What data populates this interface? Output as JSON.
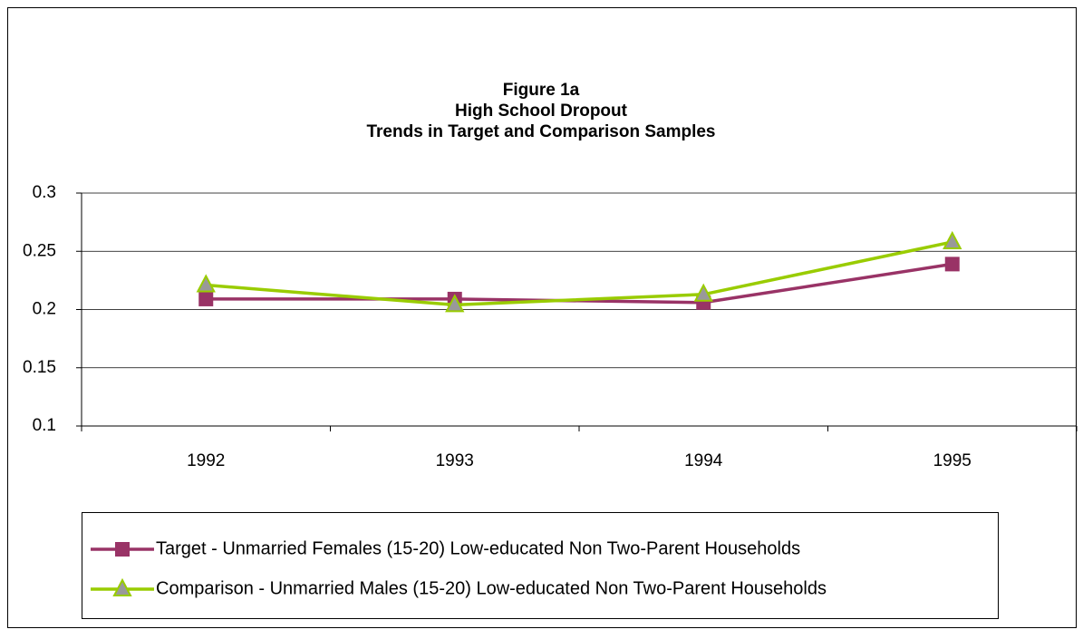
{
  "chart_data": {
    "type": "line",
    "title": [
      "Figure 1a",
      "High School Dropout",
      "Trends in Target and Comparison Samples"
    ],
    "categories": [
      "1992",
      "1993",
      "1994",
      "1995"
    ],
    "series": [
      {
        "name": "Target - Unmarried Females (15-20) Low-educated Non Two-Parent Households",
        "color": "#993366",
        "marker": "square",
        "values": [
          0.209,
          0.209,
          0.206,
          0.239
        ]
      },
      {
        "name": "Comparison - Unmarried Males (15-20) Low-educated Non Two-Parent Households",
        "color": "#99cc00",
        "marker": "triangle",
        "values": [
          0.221,
          0.204,
          0.213,
          0.258
        ]
      }
    ],
    "ylim": [
      0.1,
      0.3
    ],
    "yticks": [
      0.1,
      0.15,
      0.2,
      0.25,
      0.3
    ],
    "grid": true,
    "legend": "bottom"
  }
}
